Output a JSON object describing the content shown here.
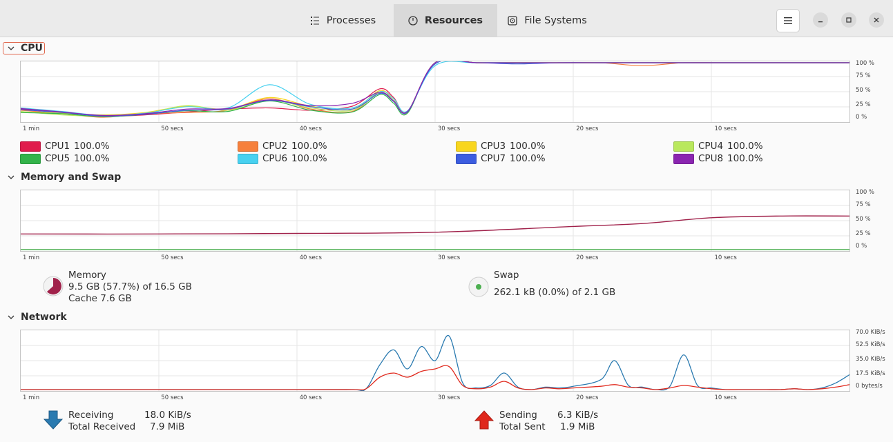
{
  "header": {
    "tabs": [
      {
        "label": "Processes"
      },
      {
        "label": "Resources"
      },
      {
        "label": "File Systems"
      }
    ]
  },
  "cpu": {
    "title": "CPU",
    "x_labels": [
      "1 min",
      "50 secs",
      "40 secs",
      "30 secs",
      "20 secs",
      "10 secs"
    ],
    "y_labels": [
      "100 %",
      "75 %",
      "50 %",
      "25 %",
      "0 %"
    ],
    "legend": [
      {
        "name": "CPU1",
        "value": "100.0%",
        "color": "#e01b4c"
      },
      {
        "name": "CPU2",
        "value": "100.0%",
        "color": "#f6803c"
      },
      {
        "name": "CPU3",
        "value": "100.0%",
        "color": "#f8d61e"
      },
      {
        "name": "CPU4",
        "value": "100.0%",
        "color": "#b9e85d"
      },
      {
        "name": "CPU5",
        "value": "100.0%",
        "color": "#33b34a"
      },
      {
        "name": "CPU6",
        "value": "100.0%",
        "color": "#48d1f0"
      },
      {
        "name": "CPU7",
        "value": "100.0%",
        "color": "#3c5de0"
      },
      {
        "name": "CPU8",
        "value": "100.0%",
        "color": "#8a25b0"
      }
    ]
  },
  "memory": {
    "title": "Memory and Swap",
    "x_labels": [
      "1 min",
      "50 secs",
      "40 secs",
      "30 secs",
      "20 secs",
      "10 secs"
    ],
    "y_labels": [
      "100 %",
      "75 %",
      "50 %",
      "25 %",
      "0 %"
    ],
    "memory_label": "Memory",
    "memory_usage": "9.5 GB (57.7%) of 16.5 GB",
    "cache": "Cache 7.6 GB",
    "swap_label": "Swap",
    "swap_usage": "262.1 kB (0.0%) of 2.1 GB",
    "memory_color": "#a0214a",
    "swap_color": "#4caf50"
  },
  "network": {
    "title": "Network",
    "x_labels": [
      "1 min",
      "50 secs",
      "40 secs",
      "30 secs",
      "20 secs",
      "10 secs"
    ],
    "y_labels": [
      "70.0 KiB/s",
      "52.5 KiB/s",
      "35.0 KiB/s",
      "17.5 KiB/s",
      "0 bytes/s"
    ],
    "receiving_label": "Receiving",
    "receiving_value": "18.0 KiB/s",
    "total_received_label": "Total Received",
    "total_received_value": "7.9 MiB",
    "sending_label": "Sending",
    "sending_value": "6.3 KiB/s",
    "total_sent_label": "Total Sent",
    "total_sent_value": "1.9 MiB",
    "receive_color": "#2a7ab0",
    "send_color": "#e0281c"
  },
  "chart_data": [
    {
      "type": "line",
      "title": "CPU",
      "x": [
        -60,
        -57,
        -54,
        -51,
        -48,
        -45,
        -42,
        -39,
        -36,
        -34,
        -33,
        -32,
        -30,
        -27,
        -24,
        -21,
        -18,
        -15,
        -12,
        -9,
        -6,
        -3,
        0
      ],
      "xlabel": "",
      "ylabel": "",
      "ylim": [
        0,
        100
      ],
      "series": [
        {
          "name": "CPU1",
          "values": [
            20,
            15,
            8,
            10,
            15,
            20,
            22,
            18,
            25,
            55,
            40,
            15,
            100,
            100,
            100,
            100,
            100,
            100,
            100,
            100,
            100,
            100,
            100
          ]
        },
        {
          "name": "CPU2",
          "values": [
            18,
            12,
            6,
            12,
            14,
            18,
            38,
            20,
            16,
            50,
            38,
            14,
            100,
            100,
            100,
            100,
            100,
            95,
            100,
            100,
            100,
            100,
            100
          ]
        },
        {
          "name": "CPU3",
          "values": [
            15,
            13,
            10,
            14,
            25,
            20,
            40,
            25,
            20,
            52,
            35,
            16,
            100,
            100,
            100,
            100,
            100,
            100,
            100,
            100,
            100,
            100,
            100
          ]
        },
        {
          "name": "CPU4",
          "values": [
            16,
            10,
            8,
            12,
            26,
            18,
            35,
            22,
            18,
            48,
            35,
            15,
            100,
            100,
            100,
            100,
            100,
            100,
            100,
            100,
            100,
            100,
            100
          ]
        },
        {
          "name": "CPU5",
          "values": [
            14,
            12,
            7,
            11,
            17,
            16,
            34,
            18,
            15,
            45,
            30,
            13,
            100,
            100,
            100,
            100,
            100,
            100,
            100,
            100,
            100,
            100,
            100
          ]
        },
        {
          "name": "CPU6",
          "values": [
            22,
            16,
            9,
            13,
            24,
            22,
            62,
            28,
            22,
            50,
            38,
            17,
            95,
            100,
            100,
            100,
            100,
            100,
            100,
            100,
            100,
            100,
            100
          ]
        },
        {
          "name": "CPU7",
          "values": [
            19,
            14,
            8,
            11,
            18,
            20,
            35,
            24,
            20,
            47,
            33,
            15,
            98,
            100,
            98,
            100,
            100,
            100,
            100,
            100,
            100,
            100,
            100
          ]
        },
        {
          "name": "CPU8",
          "values": [
            21,
            15,
            9,
            12,
            20,
            21,
            36,
            26,
            30,
            49,
            34,
            16,
            100,
            100,
            100,
            100,
            100,
            100,
            100,
            100,
            100,
            100,
            100
          ]
        }
      ]
    },
    {
      "type": "line",
      "title": "Memory and Swap",
      "x": [
        -60,
        -50,
        -40,
        -30,
        -20,
        -15,
        -10,
        -5,
        0
      ],
      "xlabel": "",
      "ylabel": "",
      "ylim": [
        0,
        100
      ],
      "series": [
        {
          "name": "Memory",
          "values": [
            27,
            27,
            28,
            30,
            40,
            45,
            55,
            58,
            58
          ]
        },
        {
          "name": "Swap",
          "values": [
            0,
            0,
            0,
            0,
            0,
            0,
            0,
            0,
            0
          ]
        }
      ]
    },
    {
      "type": "line",
      "title": "Network",
      "x": [
        -60,
        -40,
        -36,
        -35,
        -34,
        -33,
        -32,
        -31,
        -30,
        -29,
        -28,
        -27,
        -26,
        -25,
        -24,
        -23,
        -22,
        -21,
        -20,
        -18,
        -17,
        -16,
        -15,
        -14,
        -13,
        -12,
        -11,
        -10,
        -9,
        -8,
        -7,
        -6,
        -5,
        -4,
        -3,
        -2,
        -1,
        0
      ],
      "xlabel": "",
      "ylabel": "",
      "ylim": [
        0,
        70
      ],
      "series": [
        {
          "name": "Receiving",
          "values": [
            0,
            0,
            0,
            1,
            30,
            48,
            25,
            52,
            35,
            65,
            8,
            2,
            5,
            20,
            3,
            0,
            3,
            2,
            4,
            12,
            35,
            5,
            3,
            0,
            4,
            42,
            5,
            2,
            0,
            0,
            0,
            0,
            0,
            1,
            0,
            2,
            8,
            18
          ]
        },
        {
          "name": "Sending",
          "values": [
            0,
            0,
            0,
            1,
            15,
            20,
            15,
            22,
            25,
            28,
            5,
            1,
            3,
            10,
            2,
            0,
            2,
            1,
            2,
            4,
            6,
            3,
            2,
            0,
            2,
            5,
            3,
            1,
            0,
            0,
            0,
            0,
            0,
            1,
            0,
            1,
            3,
            6
          ]
        }
      ]
    }
  ]
}
